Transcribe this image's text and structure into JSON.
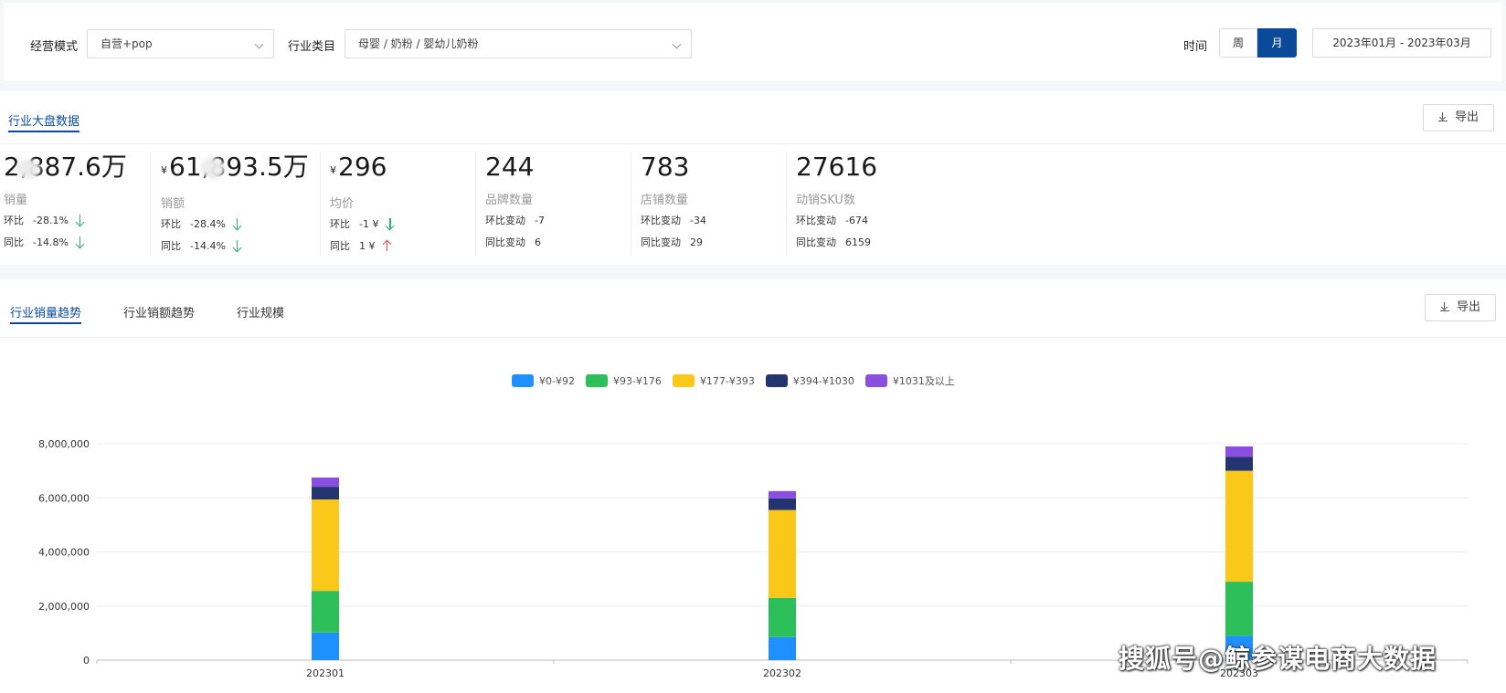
{
  "filters": {
    "mode_label": "经营模式",
    "mode_value": "自营+pop",
    "category_label": "行业类目",
    "category_value": "母婴 / 奶粉 / 婴幼儿奶粉",
    "time_label": "时间",
    "week_label": "周",
    "month_label": "月",
    "date_range": "2023年01月 - 2023年03月"
  },
  "overview": {
    "title": "行业大盘数据",
    "export_label": "导出",
    "metrics": [
      {
        "value": "2,887.6万",
        "prefix": "",
        "label": "销量",
        "row1_label": "环比",
        "row1_value": "-28.1%",
        "row2_label": "同比",
        "row2_value": "-14.8%"
      },
      {
        "value": "61,893.5万",
        "prefix": "¥",
        "label": "销额",
        "row1_label": "环比",
        "row1_value": "-28.4%",
        "row2_label": "同比",
        "row2_value": "-14.4%"
      },
      {
        "value": "296",
        "prefix": "¥",
        "label": "均价",
        "row1_label": "环比",
        "row1_value": "-1 ¥",
        "row2_label": "同比",
        "row2_value": "1 ¥"
      },
      {
        "value": "244",
        "prefix": "",
        "label": "品牌数量",
        "row1_label": "环比变动",
        "row1_value": "-7",
        "row2_label": "同比变动",
        "row2_value": "6"
      },
      {
        "value": "783",
        "prefix": "",
        "label": "店铺数量",
        "row1_label": "环比变动",
        "row1_value": "-34",
        "row2_label": "同比变动",
        "row2_value": "29"
      },
      {
        "value": "27616",
        "prefix": "",
        "label": "动销SKU数",
        "row1_label": "环比变动",
        "row1_value": "-674",
        "row2_label": "同比变动",
        "row2_value": "6159"
      }
    ]
  },
  "trend": {
    "tabs": [
      "行业销量趋势",
      "行业销额趋势",
      "行业规模"
    ],
    "export_label": "导出"
  },
  "chart_data": {
    "type": "bar",
    "stacked": true,
    "categories": [
      "202301",
      "202302",
      "202303"
    ],
    "series": [
      {
        "name": "¥0-¥92",
        "color": "#1e90ff",
        "values": [
          1020000,
          850000,
          900000
        ]
      },
      {
        "name": "¥93-¥176",
        "color": "#2dbf5a",
        "values": [
          1540000,
          1450000,
          2000000
        ]
      },
      {
        "name": "¥177-¥393",
        "color": "#fac818",
        "values": [
          3380000,
          3250000,
          4100000
        ]
      },
      {
        "name": "¥394-¥1030",
        "color": "#23346f",
        "values": [
          470000,
          430000,
          520000
        ]
      },
      {
        "name": "¥1031及以上",
        "color": "#8a4fe0",
        "values": [
          340000,
          270000,
          380000
        ]
      }
    ],
    "ylim": [
      0,
      8000000
    ],
    "yticks": [
      "0",
      "2,000,000",
      "4,000,000",
      "6,000,000",
      "8,000,000"
    ],
    "ytick_values": [
      0,
      2000000,
      4000000,
      6000000,
      8000000
    ],
    "legend_position": "top-center",
    "grid": true
  },
  "watermark": "搜狐号@鲸参谋电商大数据"
}
